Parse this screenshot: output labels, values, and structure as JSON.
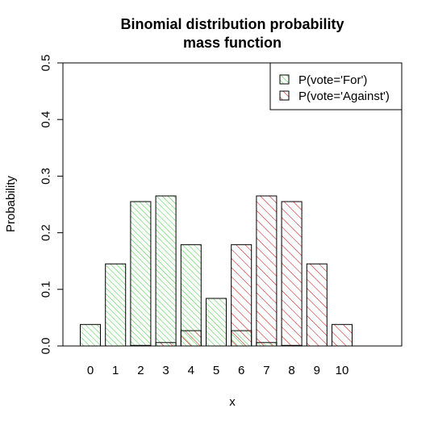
{
  "chart_data": {
    "type": "bar",
    "title_lines": [
      "Binomial distribution probability",
      "mass function"
    ],
    "xlabel": "x",
    "ylabel": "Probability",
    "categories": [
      "0",
      "1",
      "2",
      "3",
      "4",
      "5",
      "6",
      "7",
      "8",
      "9",
      "10"
    ],
    "ylim": [
      0,
      0.5
    ],
    "yticks": [
      "0.0",
      "0.1",
      "0.2",
      "0.3",
      "0.4",
      "0.5"
    ],
    "grid": false,
    "legend_position": "top-right",
    "series": [
      {
        "name": "P(vote='For')",
        "color": "#00cc00",
        "values": [
          0.038,
          0.145,
          0.255,
          0.265,
          0.179,
          0.084,
          0.027,
          0.006,
          0.001,
          0.0,
          0.0
        ]
      },
      {
        "name": "P(vote='Against')",
        "color": "#cc0000",
        "values": [
          0.0,
          0.0,
          0.001,
          0.006,
          0.027,
          0.0,
          0.179,
          0.265,
          0.255,
          0.145,
          0.038
        ]
      }
    ]
  }
}
